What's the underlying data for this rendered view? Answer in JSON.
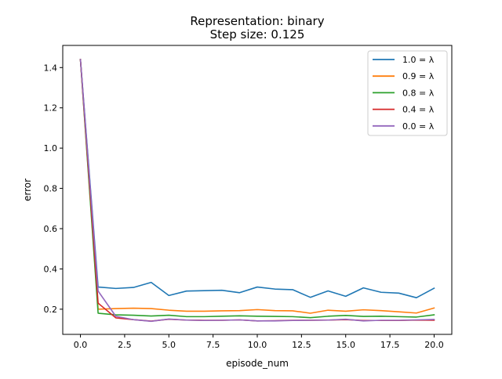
{
  "chart_data": {
    "type": "line",
    "title": "Representation: binary",
    "subtitle": "Step size: 0.125",
    "xlabel": "episode_num",
    "ylabel": "error",
    "xlim": [
      -1.0,
      21.0
    ],
    "ylim": [
      0.075,
      1.51
    ],
    "xticks": [
      0.0,
      2.5,
      5.0,
      7.5,
      10.0,
      12.5,
      15.0,
      17.5,
      20.0
    ],
    "xtick_labels": [
      "0.0",
      "2.5",
      "5.0",
      "7.5",
      "10.0",
      "12.5",
      "15.0",
      "17.5",
      "20.0"
    ],
    "yticks": [
      0.2,
      0.4,
      0.6,
      0.8,
      1.0,
      1.2,
      1.4
    ],
    "ytick_labels": [
      "0.2",
      "0.4",
      "0.6",
      "0.8",
      "1.0",
      "1.2",
      "1.4"
    ],
    "grid": false,
    "legend_position": "upper right",
    "x": [
      0,
      1,
      2,
      3,
      4,
      5,
      6,
      7,
      8,
      9,
      10,
      11,
      12,
      13,
      14,
      15,
      16,
      17,
      18,
      19,
      20
    ],
    "series": [
      {
        "name": "1.0 = λ",
        "color": "#1f77b4",
        "values": [
          1.44,
          0.31,
          0.303,
          0.308,
          0.333,
          0.268,
          0.29,
          0.292,
          0.294,
          0.282,
          0.31,
          0.3,
          0.297,
          0.259,
          0.291,
          0.264,
          0.306,
          0.284,
          0.28,
          0.257,
          0.304
        ]
      },
      {
        "name": "0.9 = λ",
        "color": "#ff7f0e",
        "values": [
          1.44,
          0.2,
          0.203,
          0.205,
          0.203,
          0.195,
          0.19,
          0.19,
          0.192,
          0.193,
          0.198,
          0.193,
          0.192,
          0.18,
          0.195,
          0.19,
          0.197,
          0.193,
          0.187,
          0.181,
          0.206
        ]
      },
      {
        "name": "0.8 = λ",
        "color": "#2ca02c",
        "values": [
          1.44,
          0.18,
          0.172,
          0.17,
          0.166,
          0.17,
          0.163,
          0.163,
          0.165,
          0.167,
          0.165,
          0.164,
          0.163,
          0.158,
          0.165,
          0.169,
          0.164,
          0.165,
          0.163,
          0.161,
          0.172
        ]
      },
      {
        "name": "0.4 = λ",
        "color": "#d62728",
        "values": [
          1.44,
          0.23,
          0.157,
          0.148,
          0.141,
          0.15,
          0.146,
          0.145,
          0.145,
          0.147,
          0.142,
          0.143,
          0.145,
          0.145,
          0.146,
          0.148,
          0.144,
          0.144,
          0.144,
          0.146,
          0.145
        ]
      },
      {
        "name": "0.0 = λ",
        "color": "#9467bd",
        "values": [
          1.44,
          0.29,
          0.165,
          0.148,
          0.14,
          0.151,
          0.146,
          0.144,
          0.145,
          0.147,
          0.142,
          0.142,
          0.144,
          0.145,
          0.146,
          0.15,
          0.142,
          0.145,
          0.145,
          0.147,
          0.149
        ]
      }
    ]
  }
}
